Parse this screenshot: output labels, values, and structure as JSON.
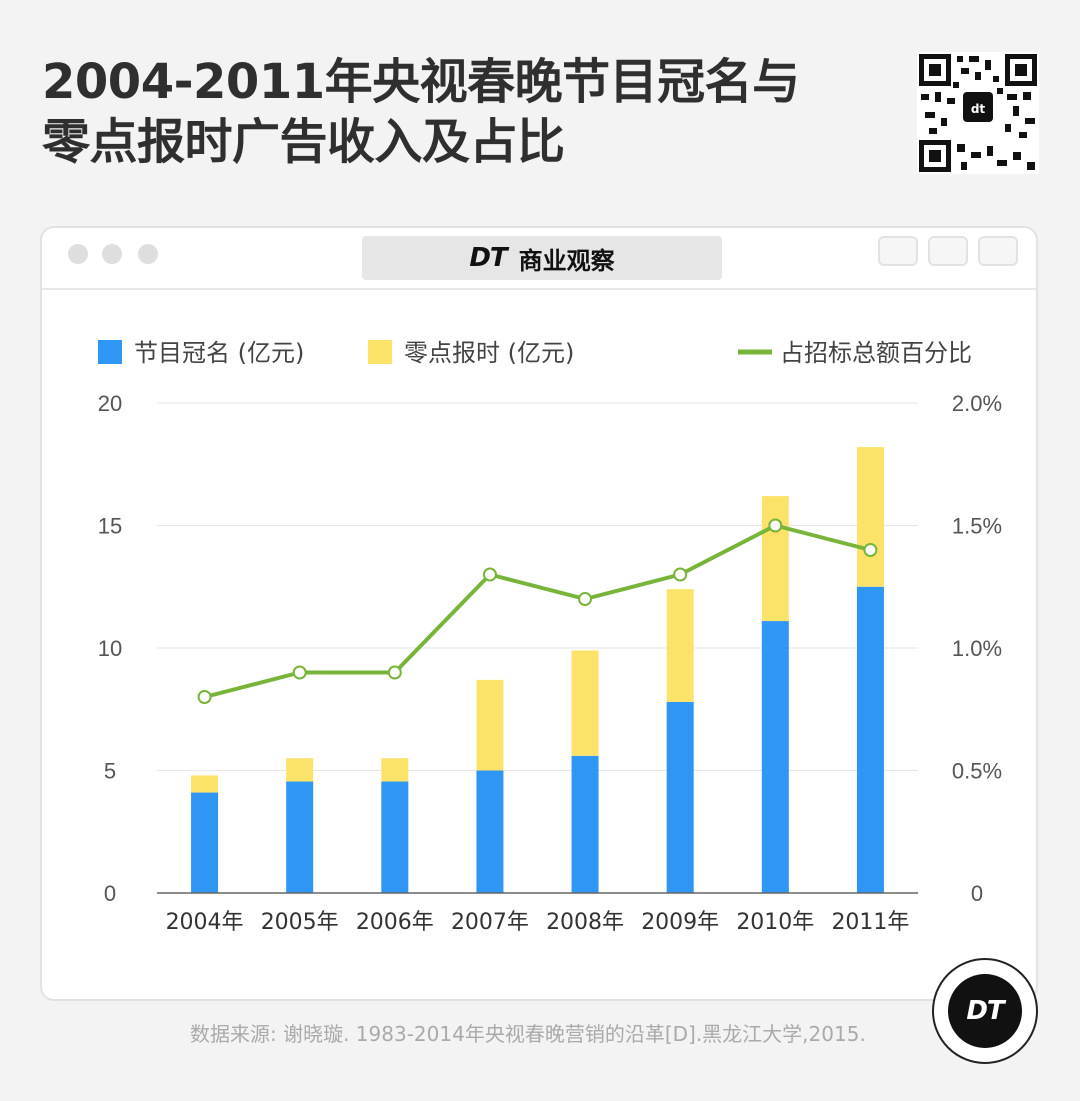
{
  "header": {
    "title_line1": "2004-2011年央视春晚节目冠名与",
    "title_line2": "零点报时广告收入及占比"
  },
  "window": {
    "brand_logo": "DT",
    "brand_name": "商业观察"
  },
  "footer": {
    "source": "数据来源: 谢晓璇. 1983-2014年央视春晚营销的沿革[D].黑龙江大学,2015.",
    "badge_text": "DT"
  },
  "colors": {
    "bar_blue": "#2f96f3",
    "bar_yellow": "#fbe36a",
    "line_green": "#79b43a"
  },
  "chart_data": {
    "type": "bar",
    "stacked": true,
    "categories": [
      "2004年",
      "2005年",
      "2006年",
      "2007年",
      "2008年",
      "2009年",
      "2010年",
      "2011年"
    ],
    "series": [
      {
        "name": "节目冠名 (亿元)",
        "type": "bar",
        "axis": "left",
        "color": "#2f96f3",
        "values": [
          4.1,
          4.55,
          4.55,
          5.0,
          5.6,
          7.8,
          11.1,
          12.5
        ]
      },
      {
        "name": "零点报时 (亿元)",
        "type": "bar",
        "axis": "left",
        "color": "#fbe36a",
        "values": [
          0.7,
          0.95,
          0.95,
          3.7,
          4.3,
          4.6,
          5.1,
          5.7
        ]
      },
      {
        "name": "占招标总额百分比",
        "type": "line",
        "axis": "right",
        "color": "#79b43a",
        "values": [
          0.8,
          0.9,
          0.9,
          1.3,
          1.2,
          1.3,
          1.5,
          1.4
        ]
      }
    ],
    "ylim": [
      0,
      20
    ],
    "y_ticks": [
      "0",
      "5",
      "10",
      "15",
      "20"
    ],
    "y2lim": [
      0,
      2.0
    ],
    "y2_ticks": [
      "0",
      "0.5%",
      "1.0%",
      "1.5%",
      "2.0%"
    ],
    "legend_position": "top",
    "grid": true
  }
}
